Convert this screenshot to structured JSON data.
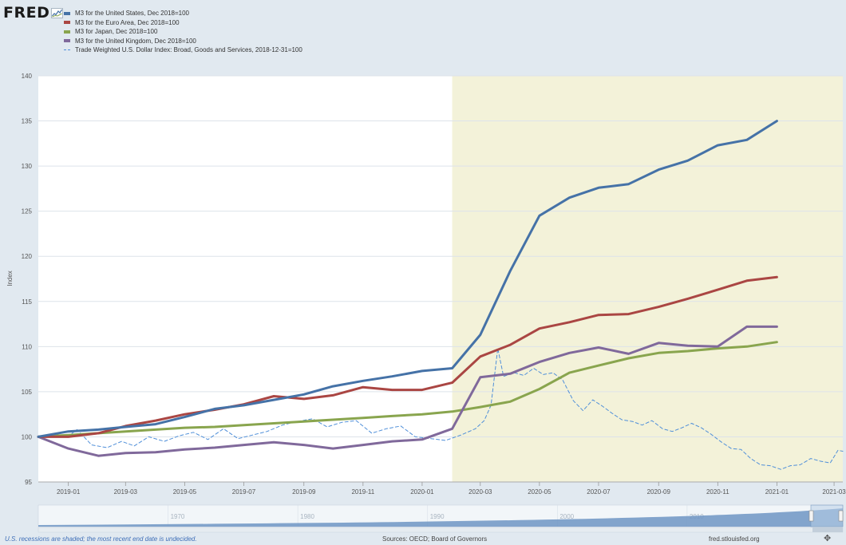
{
  "header": {
    "logo": "FRED",
    "logo_icon": "fred-line-graph-icon"
  },
  "legend": [
    {
      "label": "M3 for the United States, Dec 2018=100",
      "color": "#4572a7",
      "style": "solid"
    },
    {
      "label": "M3 for the Euro Area, Dec 2018=100",
      "color": "#aa4643",
      "style": "solid"
    },
    {
      "label": "M3 for Japan, Dec 2018=100",
      "color": "#89a54e",
      "style": "solid"
    },
    {
      "label": "M3 for the United Kingdom, Dec 2018=100",
      "color": "#80699b",
      "style": "solid"
    },
    {
      "label": "Trade Weighted U.S. Dollar Index: Broad, Goods and Services, 2018-12-31=100",
      "color": "#4f8fd9",
      "style": "dashed"
    }
  ],
  "chart_data": {
    "type": "line",
    "ylabel": "Index",
    "ylim": [
      95,
      140
    ],
    "yticks": [
      "95",
      "100",
      "105",
      "110",
      "115",
      "120",
      "125",
      "130",
      "135",
      "140"
    ],
    "xlim": [
      "2018-12-01",
      "2021-03-10"
    ],
    "xticks": [
      {
        "label": "2019-01",
        "date": "2019-01-01"
      },
      {
        "label": "2019-03",
        "date": "2019-03-01"
      },
      {
        "label": "2019-05",
        "date": "2019-05-01"
      },
      {
        "label": "2019-07",
        "date": "2019-07-01"
      },
      {
        "label": "2019-09",
        "date": "2019-09-01"
      },
      {
        "label": "2019-11",
        "date": "2019-11-01"
      },
      {
        "label": "2020-01",
        "date": "2020-01-01"
      },
      {
        "label": "2020-03",
        "date": "2020-03-01"
      },
      {
        "label": "2020-05",
        "date": "2020-05-01"
      },
      {
        "label": "2020-07",
        "date": "2020-07-01"
      },
      {
        "label": "2020-09",
        "date": "2020-09-01"
      },
      {
        "label": "2020-11",
        "date": "2020-11-01"
      },
      {
        "label": "2021-01",
        "date": "2021-01-01"
      },
      {
        "label": "2021-03",
        "date": "2021-03-01"
      }
    ],
    "grid": true,
    "recession_shading": {
      "start": "2020-02-01",
      "end": "2021-03-10",
      "color": "#f3f2d9"
    },
    "series": [
      {
        "name": "M3 for the United States, Dec 2018=100",
        "color": "#4572a7",
        "style": "solid",
        "x": [
          "2018-12-01",
          "2019-01-01",
          "2019-02-01",
          "2019-03-01",
          "2019-04-01",
          "2019-05-01",
          "2019-06-01",
          "2019-07-01",
          "2019-08-01",
          "2019-09-01",
          "2019-10-01",
          "2019-11-01",
          "2019-12-01",
          "2020-01-01",
          "2020-02-01",
          "2020-03-01",
          "2020-04-01",
          "2020-05-01",
          "2020-06-01",
          "2020-07-01",
          "2020-08-01",
          "2020-09-01",
          "2020-10-01",
          "2020-11-01",
          "2020-12-01",
          "2021-01-01"
        ],
        "values": [
          100,
          100.6,
          100.8,
          101.1,
          101.4,
          102.2,
          103.1,
          103.5,
          104.1,
          104.7,
          105.6,
          106.2,
          106.7,
          107.3,
          107.6,
          111.3,
          118.4,
          124.5,
          126.5,
          127.6,
          128.0,
          129.6,
          130.6,
          132.3,
          132.9,
          135.0
        ]
      },
      {
        "name": "M3 for the Euro Area, Dec 2018=100",
        "color": "#aa4643",
        "style": "solid",
        "x": [
          "2018-12-01",
          "2019-01-01",
          "2019-02-01",
          "2019-03-01",
          "2019-04-01",
          "2019-05-01",
          "2019-06-01",
          "2019-07-01",
          "2019-08-01",
          "2019-09-01",
          "2019-10-01",
          "2019-11-01",
          "2019-12-01",
          "2020-01-01",
          "2020-02-01",
          "2020-03-01",
          "2020-04-01",
          "2020-05-01",
          "2020-06-01",
          "2020-07-01",
          "2020-08-01",
          "2020-09-01",
          "2020-10-01",
          "2020-11-01",
          "2020-12-01",
          "2021-01-01"
        ],
        "values": [
          100,
          100.0,
          100.4,
          101.2,
          101.8,
          102.5,
          103.0,
          103.6,
          104.5,
          104.2,
          104.6,
          105.5,
          105.2,
          105.2,
          106.0,
          108.9,
          110.2,
          112.0,
          112.7,
          113.5,
          113.6,
          114.4,
          115.3,
          116.3,
          117.3,
          117.7
        ]
      },
      {
        "name": "M3 for Japan, Dec 2018=100",
        "color": "#89a54e",
        "style": "solid",
        "x": [
          "2018-12-01",
          "2019-01-01",
          "2019-02-01",
          "2019-03-01",
          "2019-04-01",
          "2019-05-01",
          "2019-06-01",
          "2019-07-01",
          "2019-08-01",
          "2019-09-01",
          "2019-10-01",
          "2019-11-01",
          "2019-12-01",
          "2020-01-01",
          "2020-02-01",
          "2020-03-01",
          "2020-04-01",
          "2020-05-01",
          "2020-06-01",
          "2020-07-01",
          "2020-08-01",
          "2020-09-01",
          "2020-10-01",
          "2020-11-01",
          "2020-12-01",
          "2021-01-01"
        ],
        "values": [
          100,
          100.2,
          100.4,
          100.6,
          100.8,
          101.0,
          101.1,
          101.3,
          101.5,
          101.7,
          101.9,
          102.1,
          102.3,
          102.5,
          102.8,
          103.3,
          103.9,
          105.3,
          107.1,
          107.9,
          108.7,
          109.3,
          109.5,
          109.8,
          110.0,
          110.5
        ]
      },
      {
        "name": "M3 for the United Kingdom, Dec 2018=100",
        "color": "#80699b",
        "style": "solid",
        "x": [
          "2018-12-01",
          "2019-01-01",
          "2019-02-01",
          "2019-03-01",
          "2019-04-01",
          "2019-05-01",
          "2019-06-01",
          "2019-07-01",
          "2019-08-01",
          "2019-09-01",
          "2019-10-01",
          "2019-11-01",
          "2019-12-01",
          "2020-01-01",
          "2020-02-01",
          "2020-03-01",
          "2020-04-01",
          "2020-05-01",
          "2020-06-01",
          "2020-07-01",
          "2020-08-01",
          "2020-09-01",
          "2020-10-01",
          "2020-11-01",
          "2020-12-01",
          "2021-01-01"
        ],
        "values": [
          100,
          98.7,
          97.9,
          98.2,
          98.3,
          98.6,
          98.8,
          99.1,
          99.4,
          99.1,
          98.7,
          99.1,
          99.5,
          99.7,
          100.9,
          106.6,
          107.0,
          108.3,
          109.3,
          109.9,
          109.2,
          110.4,
          110.1,
          110.0,
          112.2,
          112.2
        ]
      },
      {
        "name": "Trade Weighted U.S. Dollar Index: Broad, Goods and Services, 2018-12-31=100",
        "color": "#4f8fd9",
        "style": "dashed",
        "x": [
          "2018-12-31",
          "2019-01-10",
          "2019-01-25",
          "2019-02-10",
          "2019-02-25",
          "2019-03-10",
          "2019-03-25",
          "2019-04-10",
          "2019-04-25",
          "2019-05-10",
          "2019-05-25",
          "2019-06-10",
          "2019-06-25",
          "2019-07-10",
          "2019-07-25",
          "2019-08-10",
          "2019-08-25",
          "2019-09-10",
          "2019-09-25",
          "2019-10-10",
          "2019-10-25",
          "2019-11-10",
          "2019-11-25",
          "2019-12-10",
          "2019-12-25",
          "2020-01-10",
          "2020-01-25",
          "2020-02-10",
          "2020-02-25",
          "2020-03-05",
          "2020-03-12",
          "2020-03-19",
          "2020-03-25",
          "2020-04-05",
          "2020-04-15",
          "2020-04-25",
          "2020-05-05",
          "2020-05-15",
          "2020-05-25",
          "2020-06-05",
          "2020-06-15",
          "2020-06-25",
          "2020-07-05",
          "2020-07-15",
          "2020-07-25",
          "2020-08-05",
          "2020-08-15",
          "2020-08-25",
          "2020-09-05",
          "2020-09-15",
          "2020-09-25",
          "2020-10-05",
          "2020-10-15",
          "2020-10-25",
          "2020-11-05",
          "2020-11-15",
          "2020-11-25",
          "2020-12-05",
          "2020-12-15",
          "2020-12-25",
          "2021-01-05",
          "2021-01-15",
          "2021-01-25",
          "2021-02-05",
          "2021-02-15",
          "2021-02-25",
          "2021-03-05",
          "2021-03-10"
        ],
        "values": [
          100,
          100.8,
          99.1,
          98.8,
          99.5,
          99.0,
          100.0,
          99.5,
          100.1,
          100.5,
          99.7,
          100.9,
          99.8,
          100.2,
          100.6,
          101.3,
          101.7,
          102.0,
          101.1,
          101.6,
          101.8,
          100.4,
          100.9,
          101.2,
          100.0,
          99.8,
          99.6,
          100.2,
          100.9,
          101.8,
          103.5,
          109.8,
          106.7,
          107.1,
          106.8,
          107.6,
          106.9,
          107.1,
          106.3,
          104.0,
          102.9,
          104.1,
          103.4,
          102.6,
          101.9,
          101.7,
          101.3,
          101.8,
          100.9,
          100.6,
          101.0,
          101.5,
          101.0,
          100.3,
          99.4,
          98.7,
          98.6,
          97.6,
          96.9,
          96.8,
          96.4,
          96.8,
          96.9,
          97.6,
          97.3,
          97.1,
          98.5,
          98.4
        ]
      }
    ]
  },
  "navigator": {
    "labels": [
      "1970",
      "1980",
      "1990",
      "2000",
      "2010"
    ]
  },
  "footer": {
    "note": "U.S. recessions are shaded; the most recent end date is undecided.",
    "source": "Sources: OECD; Board of Governors",
    "url": "fred.stlouisfed.org",
    "expand_icon": "expand-arrows-icon"
  }
}
